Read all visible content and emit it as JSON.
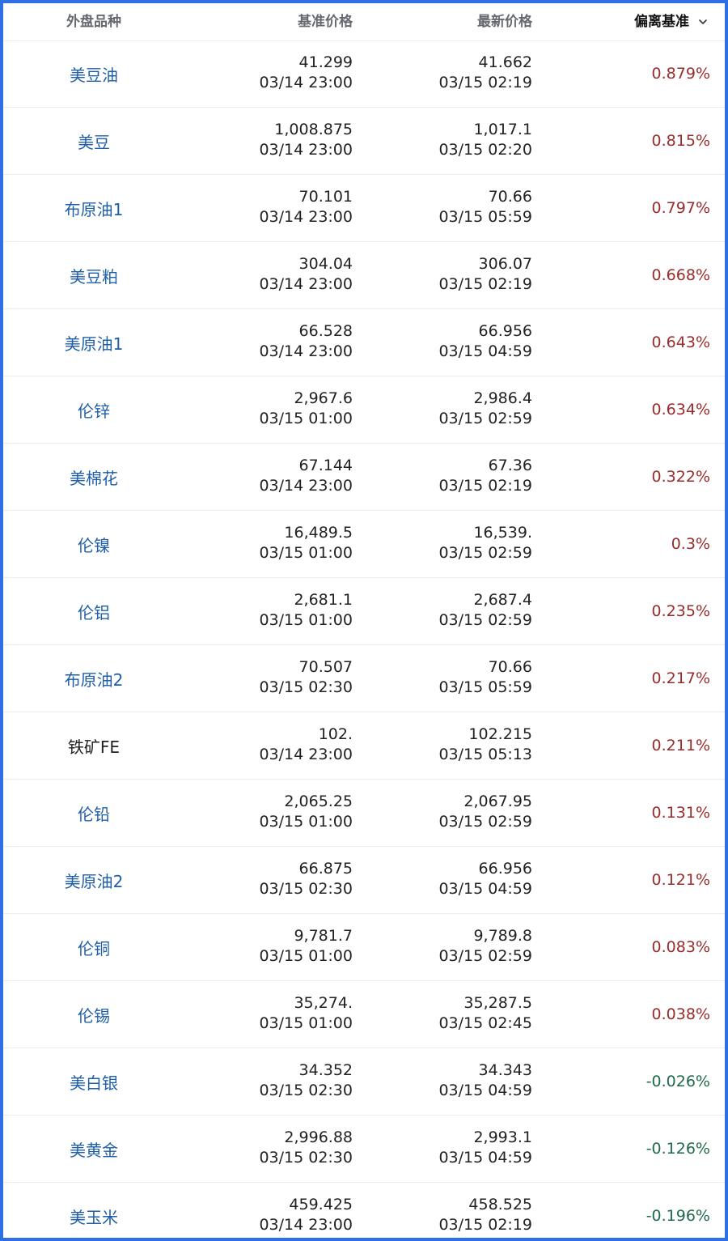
{
  "header": {
    "name": "外盘品种",
    "base": "基准价格",
    "latest": "最新价格",
    "deviation": "偏离基准"
  },
  "icons": {
    "sort": "chevron-down-icon"
  },
  "colors": {
    "frame": "#2f6fe4",
    "name_link": "#1f5ea8",
    "positive": "#9a2b2b",
    "negative": "#1f6a4a"
  },
  "rows": [
    {
      "name": "美豆油",
      "base_price": "41.299",
      "base_time": "03/14 23:00",
      "latest_price": "41.662",
      "latest_time": "03/15 02:19",
      "deviation": "0.879%",
      "sign": "pos",
      "link": true
    },
    {
      "name": "美豆",
      "base_price": "1,008.875",
      "base_time": "03/14 23:00",
      "latest_price": "1,017.1",
      "latest_time": "03/15 02:20",
      "deviation": "0.815%",
      "sign": "pos",
      "link": true
    },
    {
      "name": "布原油1",
      "base_price": "70.101",
      "base_time": "03/14 23:00",
      "latest_price": "70.66",
      "latest_time": "03/15 05:59",
      "deviation": "0.797%",
      "sign": "pos",
      "link": true
    },
    {
      "name": "美豆粕",
      "base_price": "304.04",
      "base_time": "03/14 23:00",
      "latest_price": "306.07",
      "latest_time": "03/15 02:19",
      "deviation": "0.668%",
      "sign": "pos",
      "link": true
    },
    {
      "name": "美原油1",
      "base_price": "66.528",
      "base_time": "03/14 23:00",
      "latest_price": "66.956",
      "latest_time": "03/15 04:59",
      "deviation": "0.643%",
      "sign": "pos",
      "link": true
    },
    {
      "name": "伦锌",
      "base_price": "2,967.6",
      "base_time": "03/15 01:00",
      "latest_price": "2,986.4",
      "latest_time": "03/15 02:59",
      "deviation": "0.634%",
      "sign": "pos",
      "link": true
    },
    {
      "name": "美棉花",
      "base_price": "67.144",
      "base_time": "03/14 23:00",
      "latest_price": "67.36",
      "latest_time": "03/15 02:19",
      "deviation": "0.322%",
      "sign": "pos",
      "link": true
    },
    {
      "name": "伦镍",
      "base_price": "16,489.5",
      "base_time": "03/15 01:00",
      "latest_price": "16,539.",
      "latest_time": "03/15 02:59",
      "deviation": "0.3%",
      "sign": "pos",
      "link": true
    },
    {
      "name": "伦铝",
      "base_price": "2,681.1",
      "base_time": "03/15 01:00",
      "latest_price": "2,687.4",
      "latest_time": "03/15 02:59",
      "deviation": "0.235%",
      "sign": "pos",
      "link": true
    },
    {
      "name": "布原油2",
      "base_price": "70.507",
      "base_time": "03/15 02:30",
      "latest_price": "70.66",
      "latest_time": "03/15 05:59",
      "deviation": "0.217%",
      "sign": "pos",
      "link": true
    },
    {
      "name": "铁矿FE",
      "base_price": "102.",
      "base_time": "03/14 23:00",
      "latest_price": "102.215",
      "latest_time": "03/15 05:13",
      "deviation": "0.211%",
      "sign": "pos",
      "link": false
    },
    {
      "name": "伦铅",
      "base_price": "2,065.25",
      "base_time": "03/15 01:00",
      "latest_price": "2,067.95",
      "latest_time": "03/15 02:59",
      "deviation": "0.131%",
      "sign": "pos",
      "link": true
    },
    {
      "name": "美原油2",
      "base_price": "66.875",
      "base_time": "03/15 02:30",
      "latest_price": "66.956",
      "latest_time": "03/15 04:59",
      "deviation": "0.121%",
      "sign": "pos",
      "link": true
    },
    {
      "name": "伦铜",
      "base_price": "9,781.7",
      "base_time": "03/15 01:00",
      "latest_price": "9,789.8",
      "latest_time": "03/15 02:59",
      "deviation": "0.083%",
      "sign": "pos",
      "link": true
    },
    {
      "name": "伦锡",
      "base_price": "35,274.",
      "base_time": "03/15 01:00",
      "latest_price": "35,287.5",
      "latest_time": "03/15 02:45",
      "deviation": "0.038%",
      "sign": "pos",
      "link": true
    },
    {
      "name": "美白银",
      "base_price": "34.352",
      "base_time": "03/15 02:30",
      "latest_price": "34.343",
      "latest_time": "03/15 04:59",
      "deviation": "-0.026%",
      "sign": "neg",
      "link": true
    },
    {
      "name": "美黄金",
      "base_price": "2,996.88",
      "base_time": "03/15 02:30",
      "latest_price": "2,993.1",
      "latest_time": "03/15 04:59",
      "deviation": "-0.126%",
      "sign": "neg",
      "link": true
    },
    {
      "name": "美玉米",
      "base_price": "459.425",
      "base_time": "03/14 23:00",
      "latest_price": "458.525",
      "latest_time": "03/15 02:19",
      "deviation": "-0.196%",
      "sign": "neg",
      "link": true
    }
  ]
}
